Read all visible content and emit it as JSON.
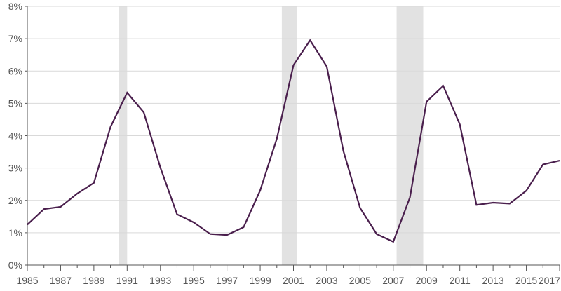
{
  "chart_data": {
    "type": "line",
    "title": "",
    "xlabel": "",
    "ylabel": "",
    "x": [
      1985,
      1986,
      1987,
      1988,
      1989,
      1990,
      1991,
      1992,
      1993,
      1994,
      1995,
      1996,
      1997,
      1998,
      1999,
      2000,
      2001,
      2002,
      2003,
      2004,
      2005,
      2006,
      2007,
      2008,
      2009,
      2010,
      2011,
      2012,
      2013,
      2014,
      2015,
      2016,
      2017
    ],
    "series": [
      {
        "values": [
          1.25,
          1.73,
          1.8,
          2.21,
          2.54,
          4.27,
          5.33,
          4.72,
          3.01,
          1.57,
          1.32,
          0.96,
          0.93,
          1.17,
          2.31,
          3.91,
          6.18,
          6.95,
          6.14,
          3.53,
          1.77,
          0.96,
          0.72,
          2.09,
          5.05,
          5.54,
          4.35,
          1.86,
          1.93,
          1.9,
          2.3,
          3.11,
          3.23
        ],
        "color": "#4a1f4d"
      }
    ],
    "recession_bands": [
      {
        "start": 1990.5,
        "end": 1991.0
      },
      {
        "start": 2000.3,
        "end": 2001.2
      },
      {
        "start": 2007.2,
        "end": 2008.8
      }
    ],
    "band_color": "#e2e2e2",
    "ylim": [
      0,
      8
    ],
    "xlim": [
      1985,
      2017
    ],
    "y_ticks": [
      0,
      1,
      2,
      3,
      4,
      5,
      6,
      7,
      8
    ],
    "y_tick_labels": [
      "0%",
      "1%",
      "2%",
      "3%",
      "4%",
      "5%",
      "6%",
      "7%",
      "8%"
    ],
    "x_ticks": [
      1985,
      1987,
      1989,
      1991,
      1993,
      1995,
      1997,
      1999,
      2001,
      2003,
      2005,
      2007,
      2009,
      2011,
      2013,
      2015,
      2017
    ],
    "x_tick_labels": [
      "1985",
      "1987",
      "1989",
      "1991",
      "1993",
      "1995",
      "1997",
      "1999",
      "2001",
      "2003",
      "2005",
      "2007",
      "2009",
      "2011",
      "2013",
      "2015",
      "2017"
    ],
    "x_minor_ticks": [
      1986,
      1988,
      1990,
      1992,
      1994,
      1996,
      1998,
      2000,
      2002,
      2004,
      2006,
      2008,
      2010,
      2012,
      2014,
      2016
    ],
    "grid": true,
    "grid_color": "#d9d9d9",
    "axis_color": "#555555"
  }
}
